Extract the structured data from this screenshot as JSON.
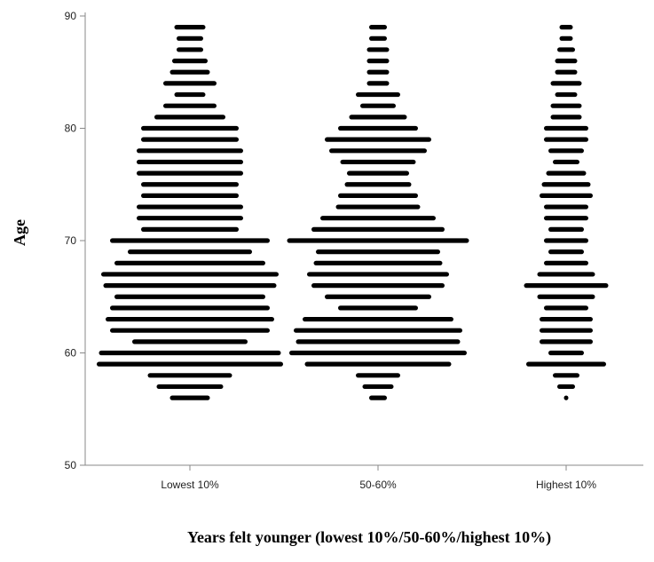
{
  "chart_data": {
    "type": "scatter",
    "subtype": "histogram-dot-plot",
    "title": "",
    "xlabel": "Years felt younger (lowest 10%/50-60%/highest 10%)",
    "ylabel": "Age",
    "categories": [
      "Lowest 10%",
      "50-60%",
      "Highest 10%"
    ],
    "ylim": [
      50,
      90
    ],
    "yticks": [
      50,
      60,
      70,
      80,
      90
    ],
    "grid": false,
    "legend": "none",
    "color": "#000000",
    "unit_note": "values = approximate relative bar width (dot count) per age",
    "series": [
      {
        "category": "Lowest 10%",
        "ages": [
          56,
          57,
          58,
          59,
          60,
          61,
          62,
          63,
          64,
          65,
          66,
          67,
          68,
          69,
          70,
          71,
          72,
          73,
          74,
          75,
          76,
          77,
          78,
          79,
          80,
          81,
          82,
          83,
          84,
          85,
          86,
          87,
          88,
          89
        ],
        "counts": [
          9,
          15,
          19,
          42,
          41,
          26,
          36,
          38,
          36,
          34,
          39,
          40,
          34,
          28,
          36,
          22,
          24,
          24,
          22,
          22,
          24,
          24,
          24,
          22,
          22,
          16,
          12,
          7,
          12,
          9,
          8,
          6,
          6,
          7
        ]
      },
      {
        "category": "50-60%",
        "ages": [
          56,
          57,
          58,
          59,
          60,
          61,
          62,
          63,
          64,
          65,
          66,
          67,
          68,
          69,
          70,
          71,
          72,
          73,
          74,
          75,
          76,
          77,
          78,
          79,
          80,
          81,
          82,
          83,
          84,
          85,
          86,
          87,
          88,
          89
        ],
        "counts": [
          4,
          7,
          10,
          33,
          40,
          37,
          38,
          34,
          18,
          24,
          30,
          32,
          29,
          28,
          41,
          30,
          26,
          19,
          18,
          15,
          14,
          17,
          22,
          24,
          18,
          13,
          8,
          10,
          5,
          5,
          5,
          5,
          4,
          4
        ]
      },
      {
        "category": "Highest 10%",
        "ages": [
          56,
          57,
          58,
          59,
          60,
          61,
          62,
          63,
          64,
          65,
          66,
          67,
          68,
          69,
          70,
          71,
          72,
          73,
          74,
          75,
          76,
          77,
          78,
          79,
          80,
          81,
          82,
          83,
          84,
          85,
          86,
          87,
          88,
          89
        ],
        "counts": [
          1,
          4,
          6,
          18,
          8,
          12,
          12,
          12,
          10,
          13,
          19,
          13,
          10,
          8,
          10,
          8,
          10,
          10,
          12,
          11,
          9,
          6,
          8,
          10,
          10,
          7,
          7,
          5,
          7,
          5,
          5,
          4,
          3,
          3
        ]
      }
    ]
  }
}
